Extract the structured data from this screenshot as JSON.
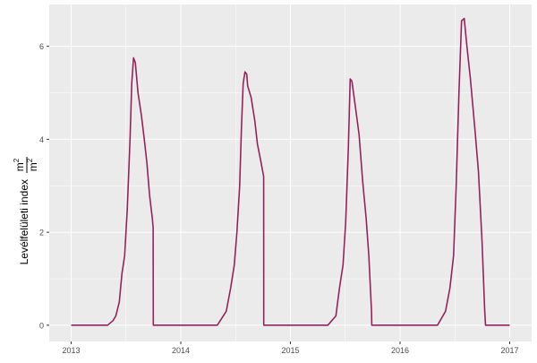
{
  "chart_data": {
    "type": "line",
    "title": "",
    "xlabel": "",
    "ylabel": "Levélfelületi index",
    "ylabel_unit_num": "m",
    "ylabel_unit_den": "m",
    "ylabel_unit_exp": "2",
    "xlim": [
      2012.8,
      2017.2
    ],
    "ylim": [
      -0.35,
      6.9
    ],
    "x_ticks": [
      2013,
      2014,
      2015,
      2016,
      2017
    ],
    "x_tick_labels": [
      "2013",
      "2014",
      "2015",
      "2016",
      "2017"
    ],
    "y_ticks": [
      0,
      2,
      4,
      6
    ],
    "y_tick_labels": [
      "0",
      "2",
      "4",
      "6"
    ],
    "grid": true,
    "legend": "none",
    "background": "#EBEBEB",
    "series": [
      {
        "color": "#5B3FA0",
        "x": [
          2013.0,
          2013.333,
          2013.382,
          2013.407,
          2013.439,
          2013.463,
          2013.488,
          2013.512,
          2013.537,
          2013.553,
          2013.569,
          2013.585,
          2013.61,
          2013.642,
          2013.667,
          2013.691,
          2013.715,
          2013.74,
          2013.748,
          2013.749,
          2014.333,
          2014.415,
          2014.455,
          2014.488,
          2014.512,
          2014.537,
          2014.553,
          2014.569,
          2014.585,
          2014.602,
          2014.61,
          2014.642,
          2014.675,
          2014.699,
          2014.732,
          2014.748,
          2014.756,
          2014.757,
          2015.341,
          2015.415,
          2015.447,
          2015.48,
          2015.504,
          2015.528,
          2015.545,
          2015.561,
          2015.593,
          2015.626,
          2015.659,
          2015.691,
          2015.715,
          2015.74,
          2015.742,
          2016.341,
          2016.415,
          2016.455,
          2016.488,
          2016.512,
          2016.537,
          2016.561,
          2016.585,
          2016.61,
          2016.642,
          2016.683,
          2016.715,
          2016.748,
          2016.772,
          2016.78,
          2017.0
        ],
        "y": [
          0,
          0,
          0.1,
          0.2,
          0.5,
          1.1,
          1.5,
          2.5,
          4.0,
          5.2,
          5.75,
          5.65,
          5.0,
          4.5,
          4.0,
          3.5,
          2.8,
          2.3,
          2.1,
          0,
          0,
          0.3,
          0.8,
          1.3,
          2.0,
          3.0,
          4.2,
          5.2,
          5.45,
          5.4,
          5.15,
          4.9,
          4.4,
          3.9,
          3.5,
          3.3,
          3.2,
          0,
          0,
          0.2,
          0.8,
          1.3,
          2.2,
          3.8,
          5.3,
          5.25,
          4.7,
          4.1,
          3.1,
          2.3,
          1.5,
          0.3,
          0,
          0,
          0.3,
          0.8,
          1.5,
          3.0,
          5.0,
          6.55,
          6.6,
          6.0,
          5.3,
          4.2,
          3.3,
          1.8,
          0.3,
          0,
          0
        ]
      },
      {
        "color": "#C0102A",
        "x": [
          2013.0,
          2013.333,
          2013.382,
          2013.407,
          2013.439,
          2013.463,
          2013.488,
          2013.512,
          2013.537,
          2013.553,
          2013.569,
          2013.585,
          2013.61,
          2013.642,
          2013.667,
          2013.691,
          2013.715,
          2013.74,
          2013.748,
          2013.749,
          2014.333,
          2014.415,
          2014.455,
          2014.488,
          2014.512,
          2014.537,
          2014.553,
          2014.569,
          2014.585,
          2014.602,
          2014.61,
          2014.642,
          2014.675,
          2014.699,
          2014.732,
          2014.748,
          2014.756,
          2014.757,
          2015.341,
          2015.415,
          2015.447,
          2015.48,
          2015.504,
          2015.528,
          2015.545,
          2015.561,
          2015.593,
          2015.626,
          2015.659,
          2015.691,
          2015.715,
          2015.74,
          2015.742,
          2016.341,
          2016.415,
          2016.455,
          2016.488,
          2016.512,
          2016.537,
          2016.561,
          2016.585,
          2016.61,
          2016.642,
          2016.683,
          2016.715,
          2016.748,
          2016.772,
          2016.78,
          2017.0
        ],
        "y": [
          0,
          0,
          0.1,
          0.2,
          0.5,
          1.1,
          1.5,
          2.5,
          4.0,
          5.2,
          5.75,
          5.65,
          5.0,
          4.5,
          4.0,
          3.5,
          2.8,
          2.3,
          2.1,
          0,
          0,
          0.3,
          0.8,
          1.3,
          2.0,
          3.0,
          4.2,
          5.2,
          5.45,
          5.4,
          5.15,
          4.9,
          4.4,
          3.9,
          3.5,
          3.3,
          3.2,
          0,
          0,
          0.2,
          0.8,
          1.3,
          2.2,
          3.8,
          5.3,
          5.25,
          4.7,
          4.1,
          3.1,
          2.3,
          1.5,
          0.3,
          0,
          0,
          0.3,
          0.8,
          1.5,
          3.0,
          5.0,
          6.55,
          6.6,
          6.0,
          5.3,
          4.2,
          3.3,
          1.8,
          0.3,
          0,
          0
        ]
      }
    ]
  }
}
